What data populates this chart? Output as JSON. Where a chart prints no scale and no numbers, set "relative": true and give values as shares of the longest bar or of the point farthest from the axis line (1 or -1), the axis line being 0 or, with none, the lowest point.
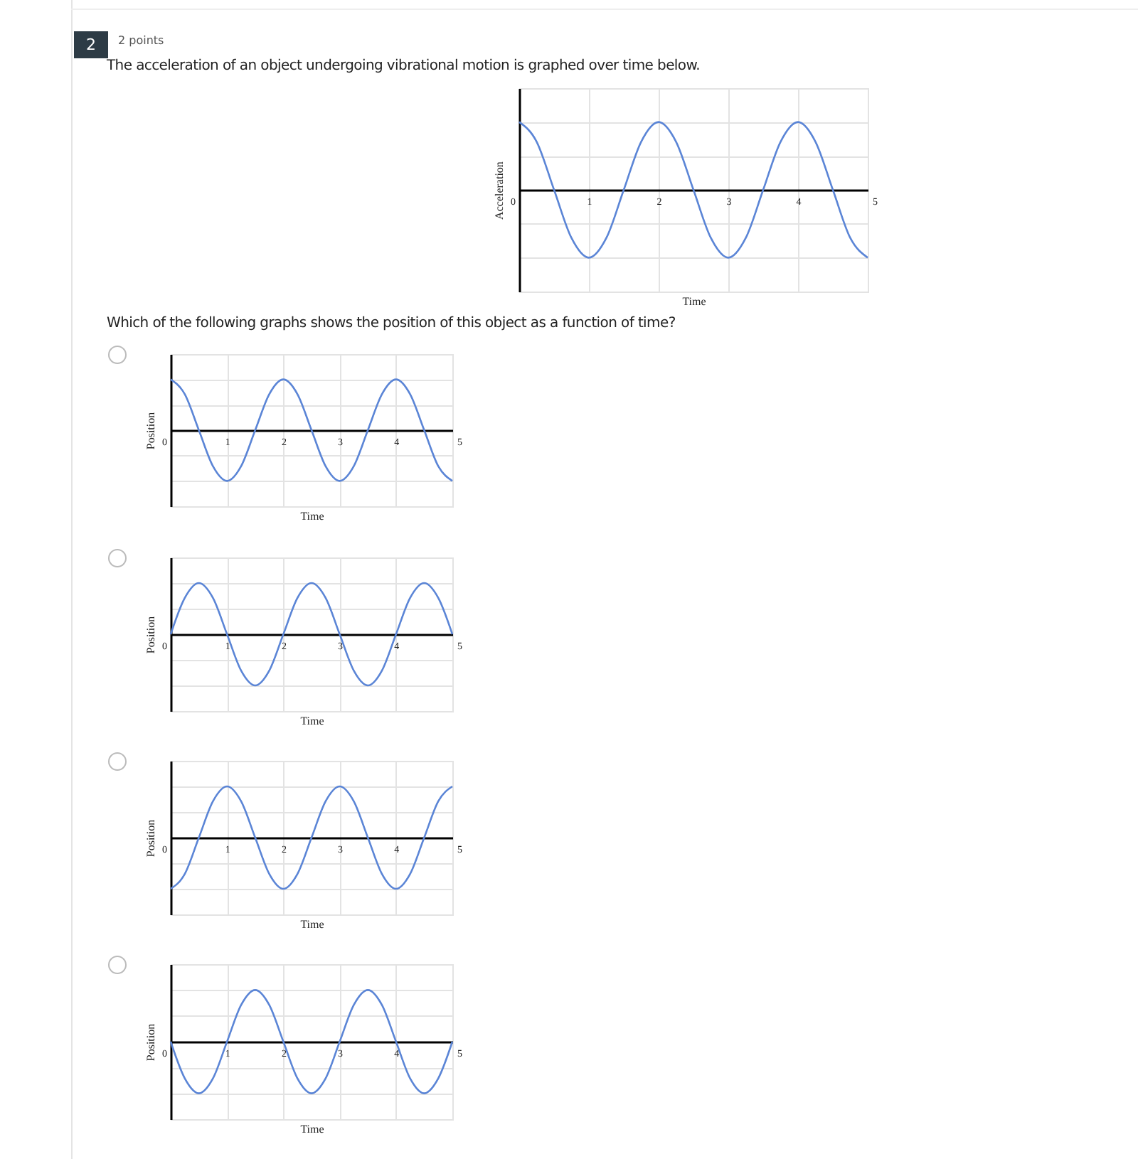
{
  "chart_data": [
    {
      "type": "line",
      "annotations": [
        "2",
        "2 points",
        "The acceleration of an object undergoing vibrational motion is graphed over time below.",
        "Which of the following graphs shows the position of this object as a function of time?"
      ],
      "xlabel": "Time",
      "ylabel": "Acceleration",
      "relative": true,
      "grid": true,
      "x": [
        0,
        0.25,
        0.5,
        0.75,
        1,
        1.25,
        1.5,
        1.75,
        2,
        2.25,
        2.5,
        2.75,
        3,
        3.25,
        3.5,
        3.75,
        4,
        4.25,
        4.5,
        4.75,
        5
      ],
      "xlim": [
        0,
        5
      ],
      "xticks": [
        0,
        1,
        2,
        3,
        4,
        5
      ],
      "series": [
        {
          "color": "#5b85d6",
          "values": [
            1,
            0.71,
            0,
            -0.71,
            -1,
            -0.71,
            0,
            0.71,
            1,
            0.71,
            0,
            -0.71,
            -1,
            -0.71,
            0,
            0.71,
            1,
            0.71,
            0,
            -0.71,
            -1
          ]
        }
      ]
    },
    {
      "type": "line",
      "xlabel": "Time",
      "ylabel": "Position",
      "relative": true,
      "grid": true,
      "x": [
        0,
        0.25,
        0.5,
        0.75,
        1,
        1.25,
        1.5,
        1.75,
        2,
        2.25,
        2.5,
        2.75,
        3,
        3.25,
        3.5,
        3.75,
        4,
        4.25,
        4.5,
        4.75,
        5
      ],
      "xlim": [
        0,
        5
      ],
      "xticks": [
        0,
        1,
        2,
        3,
        4,
        5
      ],
      "series": [
        {
          "color": "#5b85d6",
          "values": [
            1,
            0.71,
            0,
            -0.71,
            -1,
            -0.71,
            0,
            0.71,
            1,
            0.71,
            0,
            -0.71,
            -1,
            -0.71,
            0,
            0.71,
            1,
            0.71,
            0,
            -0.71,
            -1
          ]
        }
      ]
    },
    {
      "type": "line",
      "xlabel": "Time",
      "ylabel": "Position",
      "relative": true,
      "grid": true,
      "x": [
        0,
        0.25,
        0.5,
        0.75,
        1,
        1.25,
        1.5,
        1.75,
        2,
        2.25,
        2.5,
        2.75,
        3,
        3.25,
        3.5,
        3.75,
        4,
        4.25,
        4.5,
        4.75,
        5
      ],
      "xlim": [
        0,
        5
      ],
      "xticks": [
        0,
        1,
        2,
        3,
        4,
        5
      ],
      "series": [
        {
          "color": "#5b85d6",
          "values": [
            0,
            0.71,
            1,
            0.71,
            0,
            -0.71,
            -1,
            -0.71,
            0,
            0.71,
            1,
            0.71,
            0,
            -0.71,
            -1,
            -0.71,
            0,
            0.71,
            1,
            0.71,
            0
          ]
        }
      ]
    },
    {
      "type": "line",
      "xlabel": "Time",
      "ylabel": "Position",
      "relative": true,
      "grid": true,
      "x": [
        0,
        0.25,
        0.5,
        0.75,
        1,
        1.25,
        1.5,
        1.75,
        2,
        2.25,
        2.5,
        2.75,
        3,
        3.25,
        3.5,
        3.75,
        4,
        4.25,
        4.5,
        4.75,
        5
      ],
      "xlim": [
        0,
        5
      ],
      "xticks": [
        0,
        1,
        2,
        3,
        4,
        5
      ],
      "series": [
        {
          "color": "#5b85d6",
          "values": [
            -1,
            -0.71,
            0,
            0.71,
            1,
            0.71,
            0,
            -0.71,
            -1,
            -0.71,
            0,
            0.71,
            1,
            0.71,
            0,
            -0.71,
            -1,
            -0.71,
            0,
            0.71,
            1
          ]
        }
      ]
    },
    {
      "type": "line",
      "xlabel": "Time",
      "ylabel": "Position",
      "relative": true,
      "grid": true,
      "x": [
        0,
        0.25,
        0.5,
        0.75,
        1,
        1.25,
        1.5,
        1.75,
        2,
        2.25,
        2.5,
        2.75,
        3,
        3.25,
        3.5,
        3.75,
        4,
        4.25,
        4.5,
        4.75,
        5
      ],
      "xlim": [
        0,
        5
      ],
      "xticks": [
        0,
        1,
        2,
        3,
        4,
        5
      ],
      "series": [
        {
          "color": "#5b85d6",
          "values": [
            0,
            -0.71,
            -1,
            -0.71,
            0,
            0.71,
            1,
            0.71,
            0,
            -0.71,
            -1,
            -0.71,
            0,
            0.71,
            1,
            0.71,
            0,
            -0.71,
            -1,
            -0.71,
            0
          ]
        }
      ]
    }
  ]
}
